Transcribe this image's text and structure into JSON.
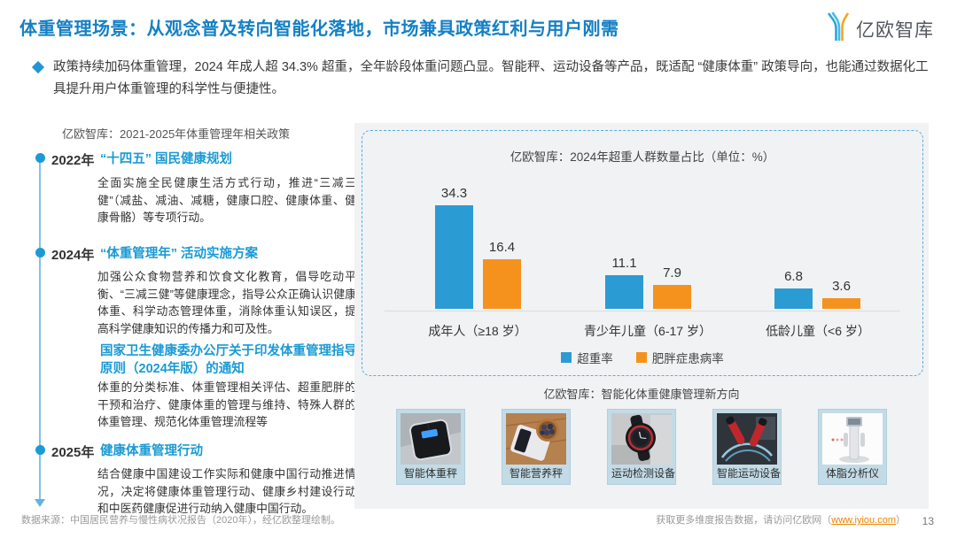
{
  "page": {
    "title": "体重管理场景：从观念普及转向智能化落地，市场兼具政策红利与用户刚需"
  },
  "logo": {
    "text": "亿欧智库"
  },
  "intro": {
    "text": "政策持续加码体重管理，2024 年成人超 34.3% 超重，全年龄段体重问题凸显。智能秤、运动设备等产品，既适配 “健康体重” 政策导向，也能通过数据化工具提升用户体重管理的科学性与便捷性。"
  },
  "timeline": {
    "header": "亿欧智库：2021-2025年体重管理年相关政策",
    "items": [
      {
        "year": "2022年",
        "title": "“十四五” 国民健康规划",
        "body": "全面实施全民健康生活方式行动，推进“三减三健”（减盐、减油、减糖，健康口腔、健康体重、健康骨骼）等专项行动。"
      },
      {
        "year": "2024年",
        "title": "“体重管理年” 活动实施方案",
        "body": "加强公众食物营养和饮食文化教育，倡导吃动平衡、“三减三健”等健康理念，指导公众正确认识健康体重、科学动态管理体重，消除体重认知误区，提高科学健康知识的传播力和可及性。"
      },
      {
        "year": "",
        "title": "国家卫生健康委办公厅关于印发体重管理指导原则（2024年版）的通知",
        "body": "体重的分类标准、体重管理相关评估、超重肥胖的干预和治疗、健康体重的管理与维持、特殊人群的体重管理、规范化体重管理流程等"
      },
      {
        "year": "2025年",
        "title": "健康体重管理行动",
        "body": "结合健康中国建设工作实际和健康中国行动推进情况，决定将健康体重管理行动、健康乡村建设行动和中医药健康促进行动纳入健康中国行动。"
      }
    ]
  },
  "chart_data": {
    "type": "bar",
    "title": "亿欧智库：2024年超重人群数量占比（单位：%）",
    "categories": [
      "成年人（≥18 岁）",
      "青少年儿童（6-17 岁）",
      "低龄儿童（<6 岁）"
    ],
    "series": [
      {
        "name": "超重率",
        "color": "#2b9cd3",
        "values": [
          34.3,
          11.1,
          6.8
        ]
      },
      {
        "name": "肥胖症患病率",
        "color": "#f5921e",
        "values": [
          16.4,
          7.9,
          3.6
        ]
      }
    ],
    "ylim": [
      0,
      40
    ],
    "grid": false,
    "legend_position": "bottom",
    "value_labels": true
  },
  "products": {
    "header": "亿欧智库：智能化体重健康管理新方向",
    "items": [
      {
        "label": "智能体重秤",
        "icon": "smart-body-scale"
      },
      {
        "label": "智能营养秤",
        "icon": "smart-nutrition-scale"
      },
      {
        "label": "运动检测设备",
        "icon": "sport-tracking-watch"
      },
      {
        "label": "智能运动设备",
        "icon": "smart-jump-rope"
      },
      {
        "label": "体脂分析仪",
        "icon": "body-fat-analyzer"
      }
    ]
  },
  "footer": {
    "source": "数据来源：中国居民营养与慢性病状况报告（2020年），经亿欧整理绘制。",
    "more_prefix": "获取更多维度报告数据，请访问亿欧网（",
    "link": "www.iyiou.com",
    "more_suffix": "）",
    "page_number": "13"
  },
  "colors": {
    "title_blue": "#1580c4",
    "item_title_blue": "#1a9ad5",
    "bar_blue": "#2b9cd3",
    "bar_orange": "#f5921e",
    "panel_gray": "#f1f2f4",
    "dashed_border": "#56aee0",
    "link_orange": "#f08300"
  }
}
